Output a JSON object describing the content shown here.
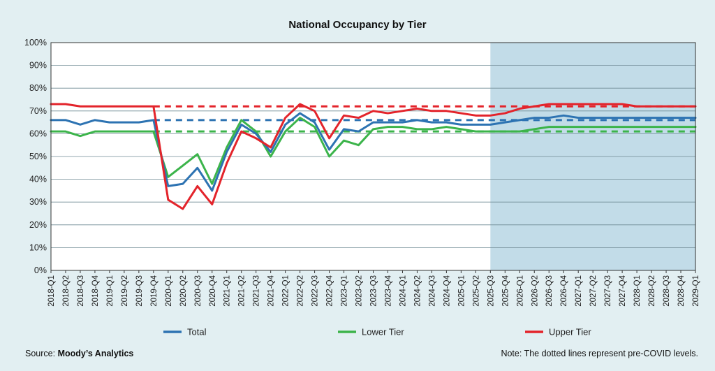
{
  "chart_data": {
    "type": "line",
    "title": "National Occupancy by Tier",
    "xlabel": "",
    "ylabel": "",
    "ylim": [
      0,
      100
    ],
    "yticks": [
      "0%",
      "10%",
      "20%",
      "30%",
      "40%",
      "50%",
      "60%",
      "70%",
      "80%",
      "90%",
      "100%"
    ],
    "categories": [
      "2018-Q1",
      "2018-Q2",
      "2018-Q3",
      "2018-Q4",
      "2019-Q1",
      "2019-Q2",
      "2019-Q3",
      "2019-Q4",
      "2020-Q1",
      "2020-Q2",
      "2020-Q3",
      "2020-Q4",
      "2021-Q1",
      "2021-Q2",
      "2021-Q3",
      "2021-Q4",
      "2022-Q1",
      "2022-Q2",
      "2022-Q3",
      "2022-Q4",
      "2023-Q1",
      "2023-Q2",
      "2023-Q3",
      "2023-Q4",
      "2024-Q1",
      "2024-Q2",
      "2024-Q3",
      "2024-Q4",
      "2025-Q1",
      "2025-Q2",
      "2025-Q3",
      "2025-Q4",
      "2026-Q1",
      "2026-Q2",
      "2026-Q3",
      "2026-Q4",
      "2027-Q1",
      "2027-Q2",
      "2027-Q3",
      "2027-Q4",
      "2028-Q1",
      "2028-Q2",
      "2028-Q3",
      "2028-Q4",
      "2029-Q1"
    ],
    "forecast_start": "2025-Q3",
    "forecast_color": "#c2dce8",
    "series": [
      {
        "name": "Total",
        "color": "#2d73b2",
        "values": [
          66,
          66,
          64,
          66,
          65,
          65,
          65,
          66,
          37,
          38,
          45,
          35,
          52,
          64,
          60,
          52,
          64,
          69,
          65,
          53,
          62,
          61,
          65,
          65,
          65,
          66,
          65,
          65,
          64,
          64,
          64,
          65,
          66,
          67,
          67,
          68,
          67,
          67,
          67,
          67,
          67,
          67,
          67,
          67,
          67
        ]
      },
      {
        "name": "Lower Tier",
        "color": "#3cb44b",
        "values": [
          61,
          61,
          59,
          61,
          61,
          61,
          61,
          61,
          41,
          46,
          51,
          38,
          54,
          66,
          61,
          50,
          61,
          67,
          63,
          50,
          57,
          55,
          62,
          63,
          63,
          62,
          62,
          63,
          62,
          61,
          61,
          61,
          61,
          62,
          63,
          63,
          63,
          63,
          63,
          63,
          63,
          63,
          63,
          63,
          63
        ]
      },
      {
        "name": "Upper Tier",
        "color": "#e3242b",
        "values": [
          73,
          73,
          72,
          72,
          72,
          72,
          72,
          72,
          31,
          27,
          37,
          29,
          47,
          61,
          58,
          54,
          67,
          73,
          70,
          58,
          68,
          67,
          70,
          69,
          70,
          71,
          70,
          70,
          69,
          68,
          68,
          69,
          71,
          72,
          73,
          73,
          73,
          73,
          73,
          73,
          72,
          72,
          72,
          72,
          72
        ]
      }
    ],
    "reference_lines": [
      {
        "name": "Total pre-COVID",
        "color": "#2d73b2",
        "value": 66,
        "from": "2019-Q4",
        "to": "2029-Q1",
        "style": "dashed"
      },
      {
        "name": "Lower Tier pre-COVID",
        "color": "#3cb44b",
        "value": 61,
        "from": "2019-Q4",
        "to": "2029-Q1",
        "style": "dashed"
      },
      {
        "name": "Upper Tier pre-COVID",
        "color": "#e3242b",
        "value": 72,
        "from": "2019-Q4",
        "to": "2029-Q1",
        "style": "dashed"
      }
    ],
    "legend": [
      "Total",
      "Lower Tier",
      "Upper Tier"
    ],
    "legend_position": "bottom"
  },
  "footer": {
    "source_prefix": "Source: ",
    "source_name": "Moody’s Analytics",
    "note": "Note: The dotted lines represent pre-COVID levels."
  }
}
